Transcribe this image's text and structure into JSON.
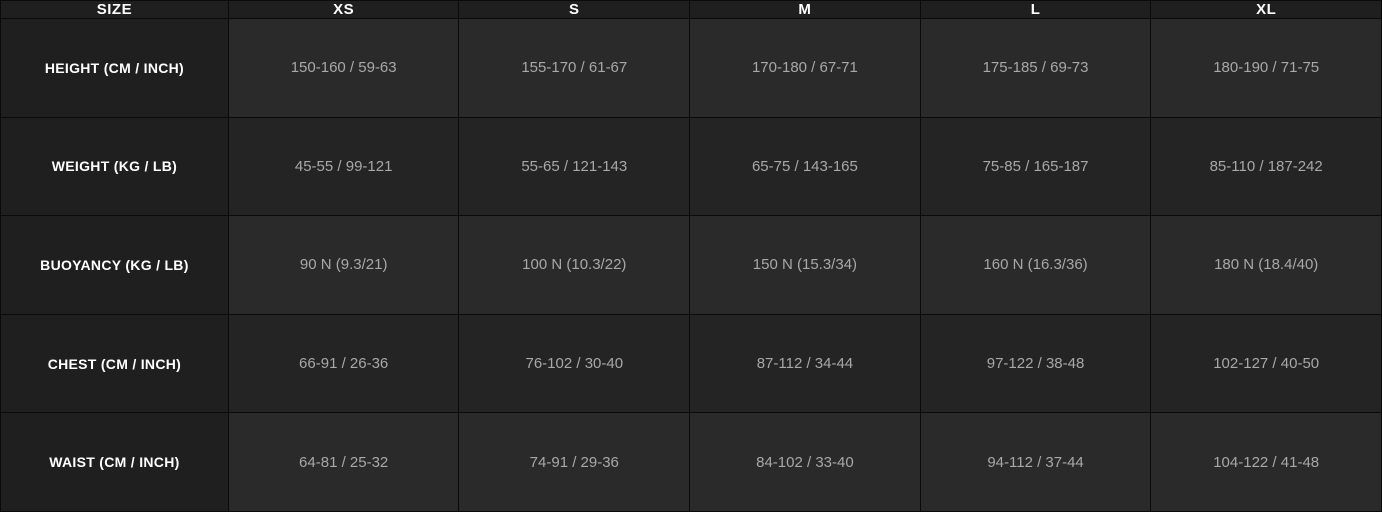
{
  "table": {
    "type": "table",
    "background_color": "#1a1a1a",
    "border_color": "#0a0a0a",
    "header_bg": "#1f1f1f",
    "row_bg_odd": "#2a2a2a",
    "row_bg_even": "#242424",
    "header_text_color": "#ffffff",
    "cell_text_color": "#a8a8a8",
    "font_family": "Arial",
    "header_fontsize": 15,
    "cell_fontsize": 15,
    "columns": [
      "SIZE",
      "XS",
      "S",
      "M",
      "L",
      "XL"
    ],
    "rows": [
      {
        "label": "HEIGHT (CM / INCH)",
        "cells": [
          "150-160 / 59-63",
          "155-170 / 61-67",
          "170-180 / 67-71",
          "175-185 / 69-73",
          "180-190 / 71-75"
        ]
      },
      {
        "label": "WEIGHT (KG / LB)",
        "cells": [
          "45-55 / 99-121",
          "55-65 / 121-143",
          "65-75 / 143-165",
          "75-85 / 165-187",
          "85-110 / 187-242"
        ]
      },
      {
        "label": "BUOYANCY (KG / LB)",
        "cells": [
          "90 N (9.3/21)",
          "100 N (10.3/22)",
          "150 N (15.3/34)",
          "160 N (16.3/36)",
          "180 N (18.4/40)"
        ]
      },
      {
        "label": "CHEST (CM / INCH)",
        "cells": [
          "66-91 / 26-36",
          "76-102 / 30-40",
          "87-112 / 34-44",
          "97-122 / 38-48",
          "102-127 / 40-50"
        ]
      },
      {
        "label": "WAIST (CM / INCH)",
        "cells": [
          "64-81 / 25-32",
          "74-91 / 29-36",
          "84-102 / 33-40",
          "94-112 / 37-44",
          "104-122 / 41-48"
        ]
      }
    ]
  }
}
